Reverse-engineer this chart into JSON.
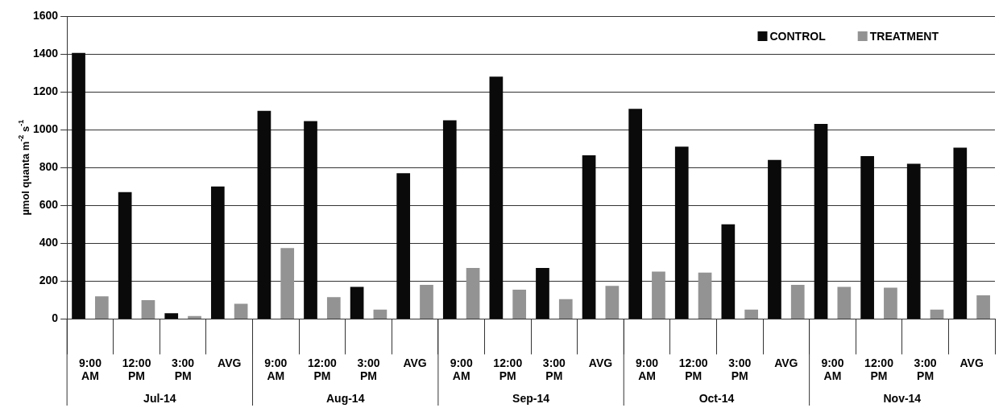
{
  "chart_data": {
    "type": "bar",
    "ylabel": "µmol quanta m$^{-2}$ s$^{-1}$",
    "categories": [
      "9:00 AM",
      "12:00 PM",
      "3:00 PM",
      "AVG",
      "9:00 AM",
      "12:00 PM",
      "3:00 PM",
      "AVG",
      "9:00 AM",
      "12:00 PM",
      "3:00 PM",
      "AVG",
      "9:00 AM",
      "12:00 PM",
      "3:00 PM",
      "AVG",
      "9:00 AM",
      "12:00 PM",
      "3:00 PM",
      "AVG"
    ],
    "series": [
      {
        "name": "CONTROL",
        "color": "#0a0a0a",
        "values": [
          1405,
          670,
          30,
          700,
          1100,
          1045,
          170,
          770,
          1050,
          1280,
          270,
          865,
          1110,
          910,
          500,
          840,
          1030,
          860,
          820,
          905
        ]
      },
      {
        "name": "TREATMENT",
        "color": "#939393",
        "values": [
          120,
          100,
          15,
          80,
          375,
          115,
          50,
          180,
          270,
          155,
          105,
          175,
          250,
          245,
          50,
          180,
          170,
          165,
          50,
          125
        ]
      }
    ],
    "annotations": [
      "Jul-14",
      "Aug-14",
      "Sep-14",
      "Oct-14",
      "Nov-14"
    ],
    "ylim": [
      0,
      1600
    ],
    "yticks": [
      0,
      200,
      400,
      600,
      800,
      1000,
      1200,
      1400,
      1600
    ],
    "grid": "y",
    "legend": "top right"
  }
}
